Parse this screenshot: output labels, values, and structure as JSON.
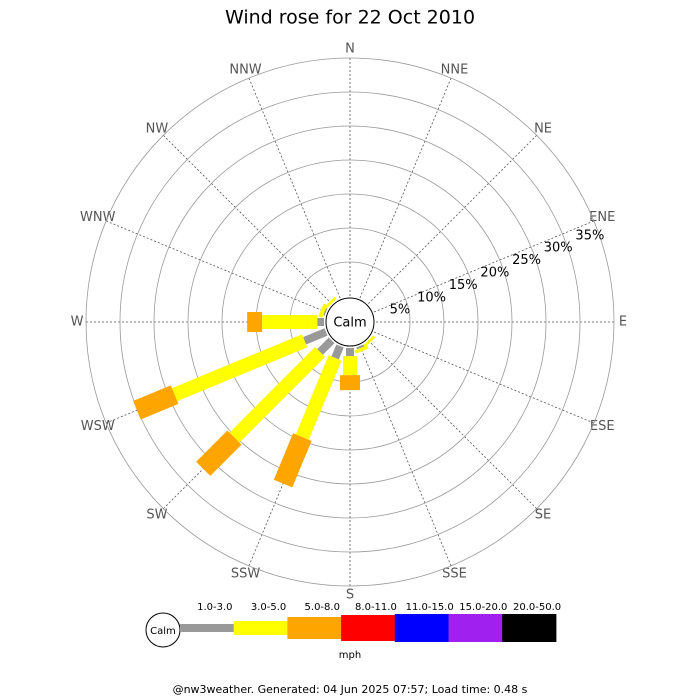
{
  "chart_data": {
    "type": "windrose",
    "title": "Wind rose for 22 Oct 2010",
    "center_label": "Calm",
    "directions": [
      "N",
      "NNE",
      "NE",
      "ENE",
      "E",
      "ESE",
      "SE",
      "SSE",
      "S",
      "SSW",
      "SW",
      "WSW",
      "W",
      "WNW",
      "NW",
      "NNW"
    ],
    "rlim": [
      0,
      35
    ],
    "rticks": [
      {
        "value": 5,
        "label": "5%"
      },
      {
        "value": 10,
        "label": "10%"
      },
      {
        "value": 15,
        "label": "15%"
      },
      {
        "value": 20,
        "label": "20%"
      },
      {
        "value": 25,
        "label": "25%"
      },
      {
        "value": 30,
        "label": "30%"
      },
      {
        "value": 35,
        "label": "35%"
      }
    ],
    "series": [
      {
        "name": "1.0-3.0",
        "color": "#999999",
        "values": [
          0,
          0,
          0,
          0,
          0,
          0,
          0,
          0.3,
          1.2,
          1.9,
          2.4,
          3.4,
          1,
          0.2,
          0,
          0
        ]
      },
      {
        "name": "3.0-5.0",
        "color": "#ffff00",
        "values": [
          0,
          0,
          0,
          0,
          0,
          0,
          0.4,
          0.5,
          2.8,
          12.6,
          17.8,
          20.7,
          8.1,
          0.6,
          0.4,
          0
        ]
      },
      {
        "name": "5.0-8.0",
        "color": "#ffa500",
        "values": [
          0,
          0,
          0,
          0,
          0,
          0,
          0,
          0,
          2.2,
          7.4,
          6.5,
          6,
          2.2,
          0,
          0,
          0
        ]
      },
      {
        "name": "8.0-11.0",
        "color": "#ff0000",
        "values": [
          0,
          0,
          0,
          0,
          0,
          0,
          0,
          0,
          0,
          0,
          0,
          0,
          0,
          0,
          0,
          0
        ]
      },
      {
        "name": "11.0-15.0",
        "color": "#0000ff",
        "values": [
          0,
          0,
          0,
          0,
          0,
          0,
          0,
          0,
          0,
          0,
          0,
          0,
          0,
          0,
          0,
          0
        ]
      },
      {
        "name": "15.0-20.0",
        "color": "#a020f0",
        "values": [
          0,
          0,
          0,
          0,
          0,
          0,
          0,
          0,
          0,
          0,
          0,
          0,
          0,
          0,
          0,
          0
        ]
      },
      {
        "name": "20.0-50.0",
        "color": "#000000",
        "values": [
          0,
          0,
          0,
          0,
          0,
          0,
          0,
          0,
          0,
          0,
          0,
          0,
          0,
          0,
          0,
          0
        ]
      }
    ],
    "legend_unit": "mph",
    "footer": "@nw3weather. Generated: 04 Jun 2025 07:57; Load time: 0.48 s"
  }
}
